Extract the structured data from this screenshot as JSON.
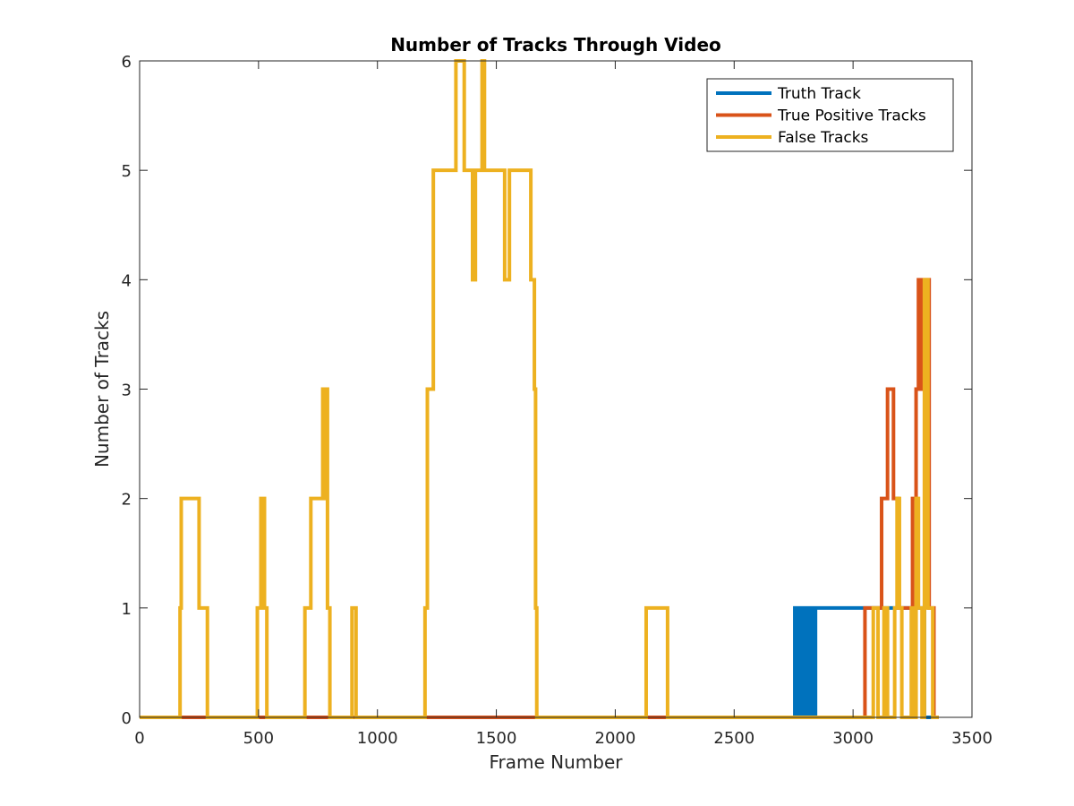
{
  "chart_data": {
    "type": "line",
    "title": "Number of Tracks Through Video",
    "xlabel": "Frame Number",
    "ylabel": "Number of Tracks",
    "xlim": [
      0,
      3500
    ],
    "ylim": [
      0,
      6
    ],
    "xticks": [
      0,
      500,
      1000,
      1500,
      2000,
      2500,
      3000,
      3500
    ],
    "yticks": [
      0,
      1,
      2,
      3,
      4,
      5,
      6
    ],
    "x_tick_labels": [
      "0",
      "500",
      "1000",
      "1500",
      "2000",
      "2500",
      "3000",
      "3500"
    ],
    "y_tick_labels": [
      "0",
      "1",
      "2",
      "3",
      "4",
      "5",
      "6"
    ],
    "grid": false,
    "legend_position": "top-right",
    "series": [
      {
        "name": "Truth Track",
        "color": "#0072BD",
        "step_changes": [
          [
            0,
            0
          ],
          [
            2755,
            1
          ],
          [
            2760,
            0
          ],
          [
            2765,
            1
          ],
          [
            2770,
            0
          ],
          [
            2775,
            1
          ],
          [
            2780,
            0
          ],
          [
            2785,
            1
          ],
          [
            2790,
            0
          ],
          [
            2795,
            1
          ],
          [
            2800,
            0
          ],
          [
            2805,
            1
          ],
          [
            2810,
            0
          ],
          [
            2815,
            1
          ],
          [
            2820,
            0
          ],
          [
            2825,
            1
          ],
          [
            2830,
            0
          ],
          [
            2835,
            1
          ],
          [
            2840,
            0
          ],
          [
            2842,
            1
          ],
          [
            3300,
            0
          ],
          [
            3360,
            0
          ]
        ]
      },
      {
        "name": "True Positive Tracks",
        "color": "#D95319",
        "step_changes": [
          [
            0,
            0
          ],
          [
            3050,
            1
          ],
          [
            3120,
            2
          ],
          [
            3145,
            3
          ],
          [
            3170,
            2
          ],
          [
            3190,
            1
          ],
          [
            3250,
            2
          ],
          [
            3265,
            3
          ],
          [
            3275,
            4
          ],
          [
            3290,
            3
          ],
          [
            3300,
            4
          ],
          [
            3320,
            1
          ],
          [
            3340,
            0
          ],
          [
            3360,
            0
          ]
        ]
      },
      {
        "name": "False Tracks",
        "color": "#EDB120",
        "step_changes": [
          [
            0,
            0
          ],
          [
            170,
            1
          ],
          [
            175,
            2
          ],
          [
            250,
            1
          ],
          [
            285,
            0
          ],
          [
            495,
            1
          ],
          [
            510,
            2
          ],
          [
            525,
            1
          ],
          [
            535,
            0
          ],
          [
            695,
            1
          ],
          [
            720,
            2
          ],
          [
            770,
            3
          ],
          [
            778,
            2
          ],
          [
            785,
            3
          ],
          [
            790,
            1
          ],
          [
            800,
            0
          ],
          [
            893,
            1
          ],
          [
            910,
            0
          ],
          [
            1200,
            1
          ],
          [
            1210,
            3
          ],
          [
            1235,
            5
          ],
          [
            1330,
            6
          ],
          [
            1365,
            5
          ],
          [
            1400,
            4
          ],
          [
            1412,
            5
          ],
          [
            1440,
            6
          ],
          [
            1450,
            5
          ],
          [
            1535,
            4
          ],
          [
            1555,
            5
          ],
          [
            1645,
            4
          ],
          [
            1660,
            3
          ],
          [
            1665,
            1
          ],
          [
            1670,
            0
          ],
          [
            2130,
            1
          ],
          [
            2220,
            0
          ],
          [
            3085,
            1
          ],
          [
            3105,
            0
          ],
          [
            3130,
            1
          ],
          [
            3145,
            0
          ],
          [
            3175,
            1
          ],
          [
            3185,
            2
          ],
          [
            3195,
            1
          ],
          [
            3205,
            0
          ],
          [
            3245,
            1
          ],
          [
            3258,
            0
          ],
          [
            3265,
            2
          ],
          [
            3275,
            1
          ],
          [
            3290,
            0
          ],
          [
            3300,
            4
          ],
          [
            3315,
            1
          ],
          [
            3335,
            0
          ],
          [
            3360,
            0
          ]
        ]
      }
    ]
  }
}
